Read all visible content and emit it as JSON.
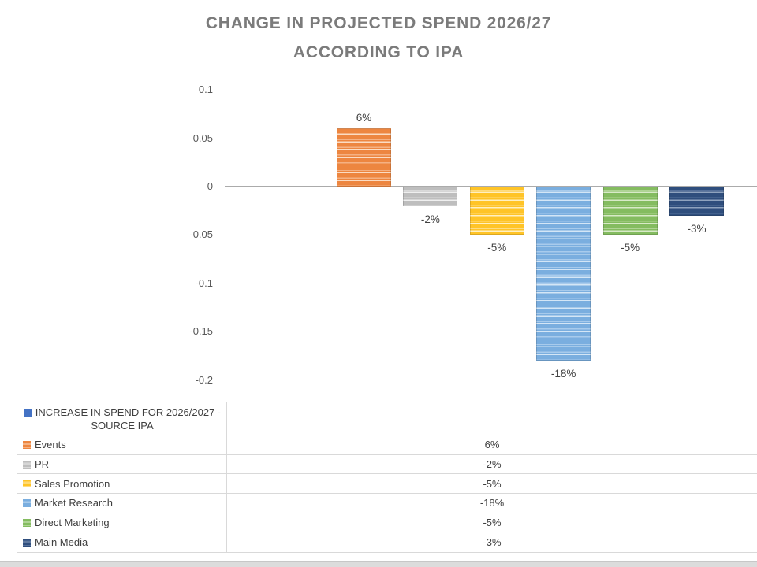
{
  "chart_data": {
    "type": "bar",
    "title": "CHANGE IN PROJECTED SPEND 2026/27 ACCORDING TO IPA",
    "title_lines": [
      "CHANGE IN PROJECTED SPEND 2026/27",
      "ACCORDING TO IPA"
    ],
    "series": [
      {
        "name": "INCREASE IN SPEND FOR 2026/2027 - SOURCE IPA",
        "values": [
          0.06,
          -0.02,
          -0.05,
          -0.18,
          -0.05,
          -0.03
        ]
      }
    ],
    "categories": [
      "Events",
      "PR",
      "Sales Promotion",
      "Market Research",
      "Direct Marketing",
      "Main Media"
    ],
    "value_labels": [
      "6%",
      "-2%",
      "-5%",
      "-18%",
      "-5%",
      "-3%"
    ],
    "xlabel": "",
    "ylabel": "",
    "ylim": [
      -0.2,
      0.1
    ],
    "y_tick_labels": [
      "0.1",
      "0.05",
      "0",
      "-0.05",
      "-0.1",
      "-0.15",
      "-0.2"
    ],
    "y_tick_values": [
      0.1,
      0.05,
      0,
      -0.05,
      -0.1,
      -0.15,
      -0.2
    ],
    "grid": false,
    "legend_position": "bottom-table",
    "bar_fill_style": "horizontal-stripe-pattern",
    "bar_colors": [
      {
        "name": "events",
        "base": "#ED8640",
        "light": "#F5B183",
        "pale": "#FBDCC3"
      },
      {
        "name": "pr",
        "base": "#BEBEBE",
        "light": "#D9D9D9",
        "pale": "#EFEFEF"
      },
      {
        "name": "sales-promotion",
        "base": "#FFC427",
        "light": "#FFDC80",
        "pale": "#FFF0C2"
      },
      {
        "name": "market-research",
        "base": "#7AAEDF",
        "light": "#A8CBEC",
        "pale": "#D4E6F6"
      },
      {
        "name": "direct-marketing",
        "base": "#84BC60",
        "light": "#AFD494",
        "pale": "#D8EAC8"
      },
      {
        "name": "main-media",
        "base": "#2F4E7D",
        "light": "#56719B",
        "pale": "#8FA3BE"
      }
    ]
  },
  "legend_table": {
    "header": {
      "label": "INCREASE IN SPEND FOR 2026/2027 - SOURCE IPA",
      "swatch_color": "#4472C4"
    },
    "rows": [
      {
        "label": "Events",
        "value": "6%"
      },
      {
        "label": "PR",
        "value": "-2%"
      },
      {
        "label": "Sales Promotion",
        "value": "-5%"
      },
      {
        "label": "Market Research",
        "value": "-18%"
      },
      {
        "label": "Direct Marketing",
        "value": "-5%"
      },
      {
        "label": "Main Media",
        "value": "-3%"
      }
    ]
  },
  "style": {
    "title_color": "#7B7B7B",
    "axis_line_color": "#ABABAB",
    "tick_label_color": "#595959",
    "data_label_color": "#404040",
    "table_border_color": "#D9D9D9",
    "table_text_color": "#3F3F3F",
    "bottom_strip_color": "#DCDCDC"
  }
}
